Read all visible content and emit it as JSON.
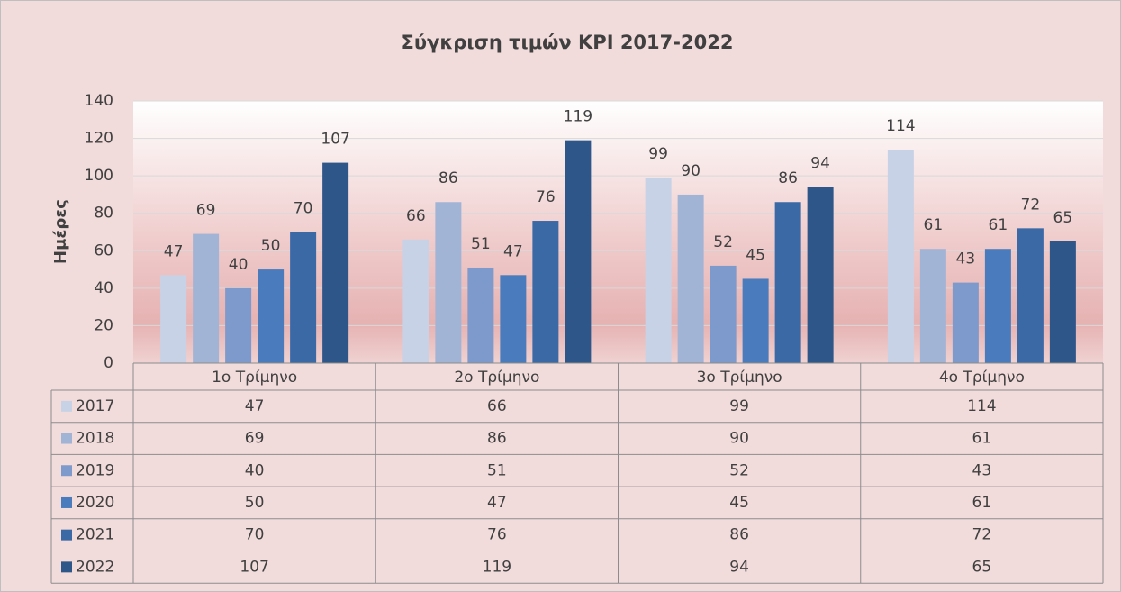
{
  "chart_data": {
    "type": "bar",
    "title": "Σύγκριση τιμών KPI 2017-2022",
    "y_label": "Ημέρες",
    "categories": [
      "1ο Τρίμηνο",
      "2ο Τρίμηνο",
      "3ο Τρίμηνο",
      "4ο Τρίμηνο"
    ],
    "series": [
      {
        "name": "2017",
        "color": "#c7d2e6",
        "values": [
          47,
          66,
          99,
          114
        ]
      },
      {
        "name": "2018",
        "color": "#a2b4d6",
        "values": [
          69,
          86,
          90,
          61
        ]
      },
      {
        "name": "2019",
        "color": "#7e99cb",
        "values": [
          40,
          51,
          52,
          43
        ]
      },
      {
        "name": "2020",
        "color": "#4a7cbd",
        "values": [
          50,
          47,
          45,
          61
        ]
      },
      {
        "name": "2021",
        "color": "#3b69a6",
        "values": [
          70,
          76,
          86,
          72
        ]
      },
      {
        "name": "2022",
        "color": "#2f5688",
        "values": [
          107,
          119,
          94,
          65
        ]
      }
    ],
    "ylim": [
      0,
      140
    ],
    "yticks": [
      0,
      20,
      40,
      60,
      80,
      100,
      120,
      140
    ],
    "grid": true
  }
}
